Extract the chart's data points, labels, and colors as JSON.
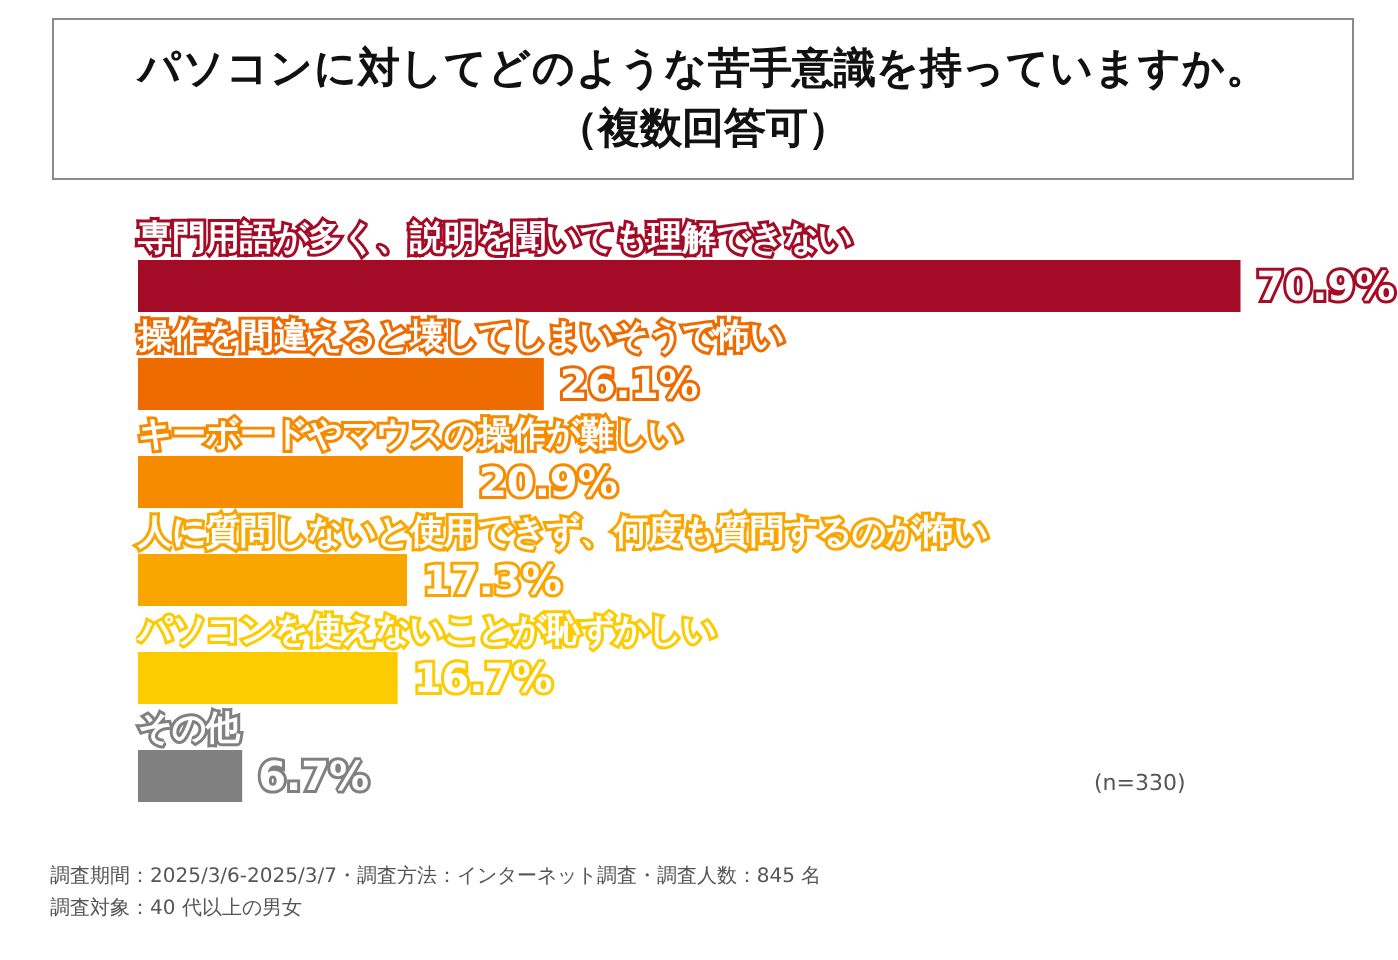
{
  "chart_data": {
    "type": "bar",
    "orientation": "horizontal",
    "title": "パソコンに対してどのような苦手意識を持っていますか。",
    "subtitle": "（複数回答可）",
    "categories": [
      "専門用語が多く、説明を聞いても理解できない",
      "操作を間違えると壊してしまいそうで怖い",
      "キーボードやマウスの操作が難しい",
      "人に質問しないと使用できず、何度も質問するのが怖い",
      "パソコンを使えないことが恥ずかしい",
      "その他"
    ],
    "values": [
      70.9,
      26.1,
      20.9,
      17.3,
      16.7,
      6.7
    ],
    "colors": [
      "#a30b27",
      "#ee6b00",
      "#f68b00",
      "#f9a600",
      "#fccb00",
      "#808080"
    ],
    "value_labels": [
      "70.9%",
      "26.1%",
      "20.9%",
      "17.3%",
      "16.7%",
      "6.7%"
    ],
    "tick_labels": "y",
    "annotations": [
      "(n=330)",
      "調査期間：2025/3/6-2025/3/7・調査方法：インターネット調査・調査人数：845 名",
      "調査対象：40 代以上の男女"
    ]
  }
}
